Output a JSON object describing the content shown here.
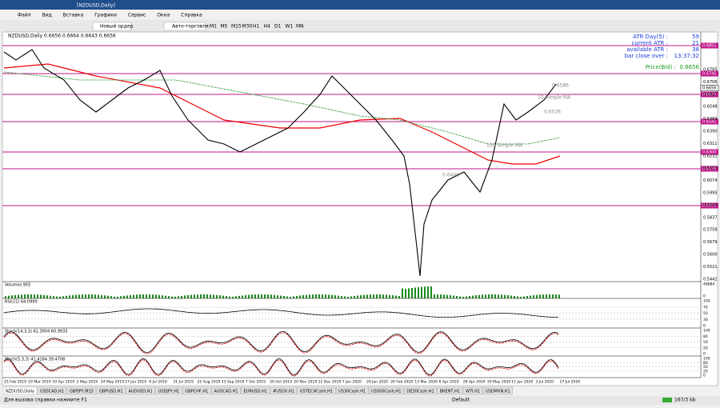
{
  "window_title": "[NZDUSD,Daily]",
  "menu": [
    "Файл",
    "Вид",
    "Вставка",
    "Графики",
    "Сервис",
    "Окна",
    "Справка"
  ],
  "toolbar": {
    "new_order": "Новый ордер",
    "auto_trading": "Авто-торговля",
    "timeframes": [
      "M1",
      "M5",
      "M15",
      "M30",
      "H1",
      "H4",
      "D1",
      "W1",
      "MN"
    ]
  },
  "chart": {
    "header": "NZDUSD,Daily 0.6656 0.6664 0.6643 0.6656",
    "info": [
      {
        "label": "ATR Day(5) :",
        "value": "59"
      },
      {
        "label": "current ATR :",
        "value": "21"
      },
      {
        "label": "available ATR :",
        "value": "38"
      },
      {
        "label": "bar close over :",
        "value": "13:37:32"
      }
    ],
    "price_bid": {
      "label": "Price(Bid) :",
      "value": "0.6656"
    },
    "annotations": [
      "0.6586",
      "10 Simple MA",
      "0.6526",
      "100 Simple MA",
      "0.6446"
    ],
    "price_axis": [
      "0.6785",
      "0.6706",
      "0.6627",
      "0.6548",
      "0.6469",
      "0.6390",
      "0.6311",
      "0.6232",
      "0.6153",
      "0.6074",
      "0.5995",
      "0.5916",
      "0.5837",
      "0.5758",
      "0.5679",
      "0.5600",
      "0.5521",
      "0.5442"
    ],
    "level_labels": [
      "0.6851",
      "0.6745",
      "0.6623",
      "0.6541",
      "0.6300",
      "0.6149",
      "0.5904"
    ],
    "current_price": "0.6656",
    "dates": [
      "25 Feb 2019",
      "19 Mar 2019",
      "10 Apr 2019",
      "2 May 2019",
      "24 May 2019",
      "17 Jun 2019",
      "9 Jul 2019",
      "31 Jul 2019",
      "22 Aug 2019",
      "13 Sep 2019",
      "7 Oct 2019",
      "29 Oct 2019",
      "20 Nov 2019",
      "12 Dec 2019",
      "7 Jan 2020",
      "29 Jan 2020",
      "20 Feb 2020",
      "13 Mar 2020",
      "6 Apr 2020",
      "28 Apr 2020",
      "20 May 2020",
      "11 Jun 2020",
      "3 Jul 2020",
      "27 Jul 2020"
    ],
    "indicators": [
      "Volumes 955",
      "RSI(21) 64.0999",
      "Stoch(14,3,3) 62.3904 60.9933",
      "Stoch(5,3,3) 41.4184 39.4708"
    ],
    "volume_scale": [
      "48884",
      "0"
    ],
    "rsi_scale": [
      "100",
      "70",
      "50",
      "30",
      "0"
    ],
    "stoch_scale": [
      "100",
      "80",
      "50",
      "20",
      "0"
    ]
  },
  "tabs": [
    "NZDUSD,Daily",
    "USDCAD,H1",
    "GBPJPY,M15",
    "GBPUSD,H1",
    "AUDUSD,H1",
    "USDJPY,H1",
    "GBPCHF,H1",
    "AUDCAD,H1",
    "EURUSD,H1",
    "#USDX,H1",
    "USTECHCash,H1",
    "US30Cash,H1",
    "US500Cash,H1",
    "DE30Cash,H1",
    "BRENT,H1",
    "WTI,H1",
    "USDMXN,H1"
  ],
  "status": {
    "help": "Для вызова справки нажмите F1",
    "profile": "Default",
    "traffic": "167/3 kb"
  }
}
